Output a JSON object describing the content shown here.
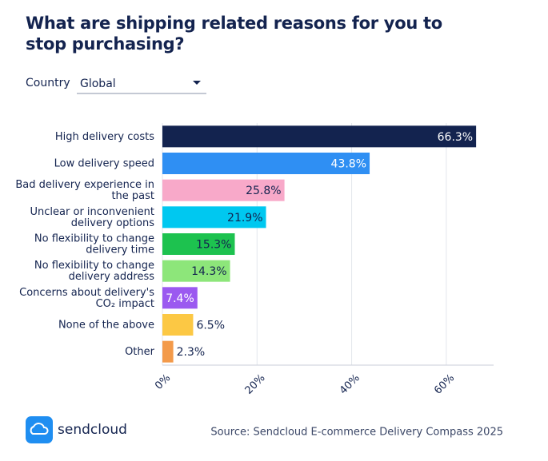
{
  "chart_data": {
    "type": "bar",
    "orientation": "horizontal",
    "title": "What are shipping related reasons for you to stop purchasing?",
    "filter_label": "Country",
    "filter_value": "Global",
    "categories": [
      "High delivery costs",
      "Low delivery speed",
      "Bad delivery experience in the past",
      "Unclear or inconvenient delivery options",
      "No flexibility to change delivery time",
      "No flexibility to change delivery address",
      "Concerns about delivery's CO₂ impact",
      "None of the above",
      "Other"
    ],
    "values": [
      66.3,
      43.8,
      25.8,
      21.9,
      15.3,
      14.3,
      7.4,
      6.5,
      2.3
    ],
    "value_labels": [
      "66.3%",
      "43.8%",
      "25.8%",
      "21.9%",
      "15.3%",
      "14.3%",
      "7.4%",
      "6.5%",
      "2.3%"
    ],
    "colors": [
      "#13234f",
      "#2f8ff3",
      "#f8a9c9",
      "#00c8f0",
      "#1dc24f",
      "#8de67a",
      "#9b59f0",
      "#fcc844",
      "#f39a4a"
    ],
    "xlim": [
      0,
      70
    ],
    "xticks": [
      {
        "value": 0,
        "label": "0%"
      },
      {
        "value": 20,
        "label": "20%"
      },
      {
        "value": 40,
        "label": "40%"
      },
      {
        "value": 60,
        "label": "60%"
      }
    ],
    "grid": true,
    "brand": "sendcloud",
    "source": "Source: Sendcloud E-commerce Delivery Compass 2025"
  }
}
